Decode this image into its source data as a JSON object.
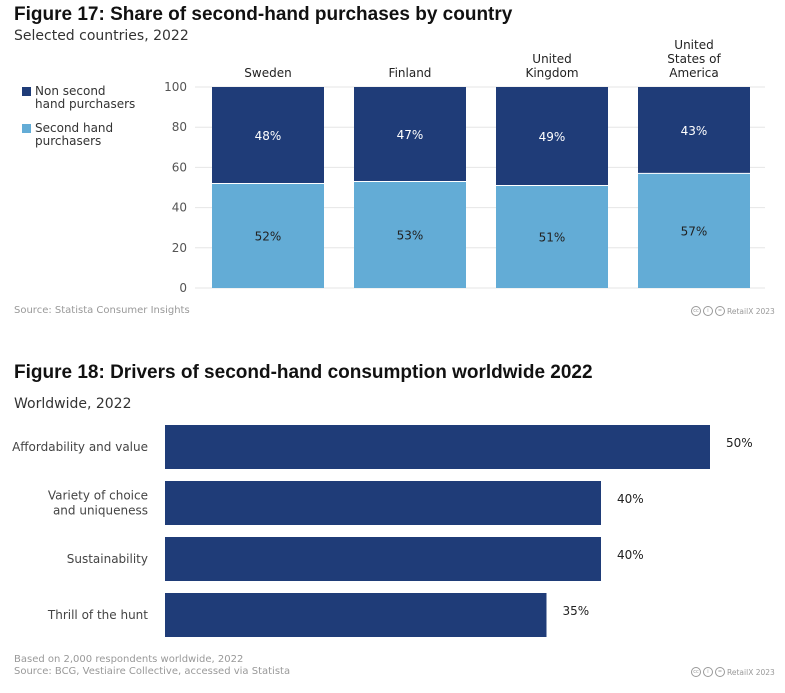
{
  "colors": {
    "non_second_hand": "#1f3c78",
    "second_hand": "#63acd6",
    "bar": "#1f3c78"
  },
  "figure17": {
    "title": "Figure 17: Share of second-hand purchases by country",
    "subtitle": "Selected countries, 2022",
    "legend": [
      {
        "label_lines": [
          "Non second",
          "hand purchasers"
        ],
        "color": "#1f3c78"
      },
      {
        "label_lines": [
          "Second hand",
          "purchasers"
        ],
        "color": "#63acd6"
      }
    ],
    "source": "Source: Statista Consumer Insights",
    "credit": "RetailX 2023"
  },
  "figure18": {
    "title": "Figure 18: Drivers of second-hand consumption worldwide 2022",
    "subtitle": "Worldwide, 2022",
    "note": "Based on 2,000 respondents worldwide, 2022",
    "source": "Source: BCG, Vestiaire Collective, accessed via Statista",
    "credit": "RetailX 2023"
  },
  "chart_data": [
    {
      "type": "bar",
      "stacked": true,
      "orientation": "vertical",
      "categories": [
        [
          "Sweden"
        ],
        [
          "Finland"
        ],
        [
          "United",
          "Kingdom"
        ],
        [
          "United",
          "States of",
          "America"
        ]
      ],
      "series": [
        {
          "name": "Second hand purchasers",
          "values": [
            52,
            53,
            51,
            57
          ],
          "labels": [
            "52%",
            "53%",
            "51%",
            "57%"
          ],
          "color": "#63acd6"
        },
        {
          "name": "Non second hand purchasers",
          "values": [
            48,
            47,
            49,
            43
          ],
          "labels": [
            "48%",
            "47%",
            "49%",
            "43%"
          ],
          "color": "#1f3c78"
        }
      ],
      "ylim": [
        0,
        100
      ],
      "yticks": [
        0,
        20,
        40,
        60,
        80,
        100
      ],
      "grid": true,
      "legend_position": "left"
    },
    {
      "type": "bar",
      "orientation": "horizontal",
      "categories": [
        [
          "Affordability and value"
        ],
        [
          "Variety of choice",
          "and uniqueness"
        ],
        [
          "Sustainability"
        ],
        [
          "Thrill of the hunt"
        ]
      ],
      "values": [
        50,
        40,
        40,
        35
      ],
      "labels": [
        "50%",
        "40%",
        "40%",
        "35%"
      ],
      "xlim": [
        0,
        50
      ],
      "grid": false
    }
  ]
}
